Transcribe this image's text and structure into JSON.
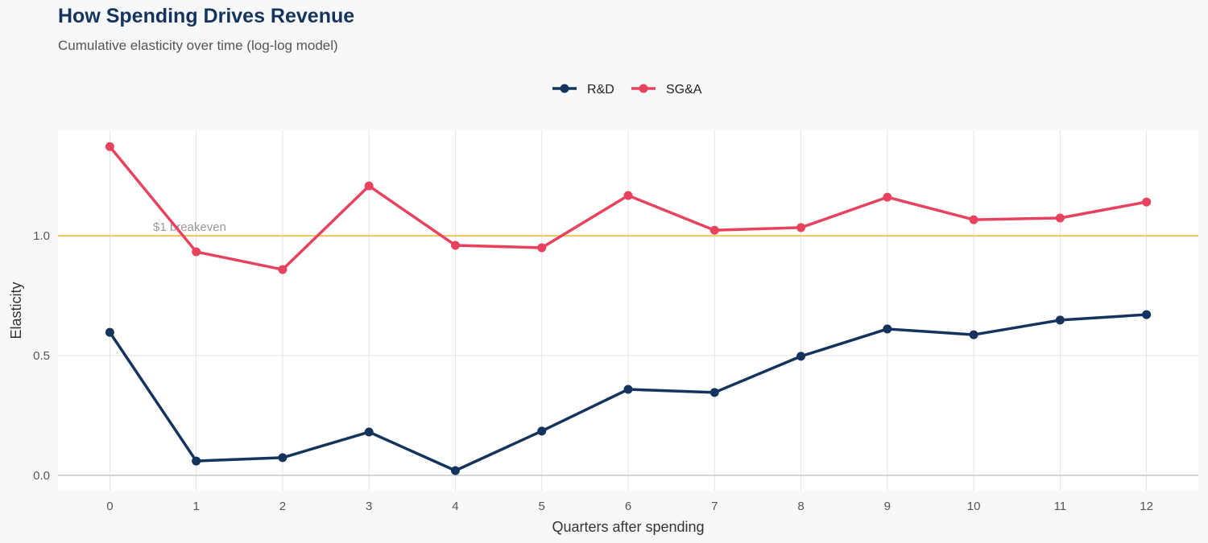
{
  "chart_data": {
    "type": "line",
    "title": "How Spending Drives Revenue",
    "subtitle": "Cumulative elasticity over time (log-log model)",
    "xlabel": "Quarters after spending",
    "ylabel": "Elasticity",
    "x": [
      0,
      1,
      2,
      3,
      4,
      5,
      6,
      7,
      8,
      9,
      10,
      11,
      12
    ],
    "xlim": [
      -0.6,
      12.6
    ],
    "ylim": [
      -0.064,
      1.44
    ],
    "yticks": [
      0.0,
      0.5,
      1.0
    ],
    "ytick_labels": [
      "0.0",
      "0.5",
      "1.0"
    ],
    "grid": true,
    "legend": "top",
    "series": [
      {
        "name": "R&D",
        "color": "#14345e",
        "values": [
          0.597,
          0.06,
          0.074,
          0.181,
          0.02,
          0.185,
          0.359,
          0.346,
          0.497,
          0.611,
          0.587,
          0.648,
          0.671
        ]
      },
      {
        "name": "SG&A",
        "color": "#e8435e",
        "values": [
          1.372,
          0.933,
          0.859,
          1.208,
          0.96,
          0.95,
          1.168,
          1.023,
          1.034,
          1.161,
          1.067,
          1.074,
          1.141
        ]
      }
    ],
    "reference_line": {
      "y": 1.0,
      "label": "$1 breakeven",
      "color": "#f5c55a"
    }
  }
}
